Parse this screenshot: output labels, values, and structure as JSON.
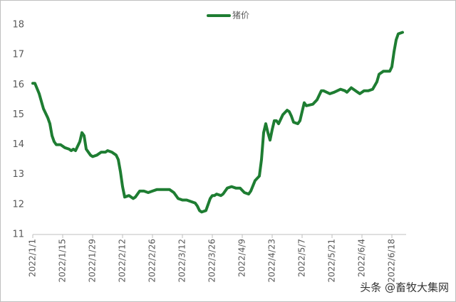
{
  "chart_data": {
    "type": "line",
    "x": [
      "2022/1/1",
      "2022/1/2",
      "2022/1/4",
      "2022/1/6",
      "2022/1/8",
      "2022/1/9",
      "2022/1/10",
      "2022/1/11",
      "2022/1/12",
      "2022/1/14",
      "2022/1/16",
      "2022/1/18",
      "2022/1/19",
      "2022/1/20",
      "2022/1/21",
      "2022/1/23",
      "2022/1/24",
      "2022/1/25",
      "2022/1/26",
      "2022/1/28",
      "2022/1/29",
      "2022/1/31",
      "2022/2/2",
      "2022/2/4",
      "2022/2/5",
      "2022/2/7",
      "2022/2/9",
      "2022/2/10",
      "2022/2/11",
      "2022/2/12",
      "2022/2/13",
      "2022/2/15",
      "2022/2/17",
      "2022/2/18",
      "2022/2/20",
      "2022/2/22",
      "2022/2/24",
      "2022/2/26",
      "2022/2/28",
      "2022/3/2",
      "2022/3/4",
      "2022/3/6",
      "2022/3/8",
      "2022/3/10",
      "2022/3/12",
      "2022/3/14",
      "2022/3/16",
      "2022/3/18",
      "2022/3/19",
      "2022/3/20",
      "2022/3/21",
      "2022/3/23",
      "2022/3/25",
      "2022/3/26",
      "2022/3/27",
      "2022/3/28",
      "2022/3/30",
      "2022/3/31",
      "2022/4/2",
      "2022/4/4",
      "2022/4/6",
      "2022/4/8",
      "2022/4/10",
      "2022/4/12",
      "2022/4/13",
      "2022/4/15",
      "2022/4/17",
      "2022/4/18",
      "2022/4/19",
      "2022/4/20",
      "2022/4/21",
      "2022/4/22",
      "2022/4/23",
      "2022/4/24",
      "2022/4/25",
      "2022/4/26",
      "2022/4/28",
      "2022/4/30",
      "2022/5/1",
      "2022/5/2",
      "2022/5/3",
      "2022/5/5",
      "2022/5/6",
      "2022/5/7",
      "2022/5/8",
      "2022/5/9",
      "2022/5/12",
      "2022/5/14",
      "2022/5/16",
      "2022/5/17",
      "2022/5/20",
      "2022/5/22",
      "2022/5/25",
      "2022/5/27",
      "2022/5/28",
      "2022/5/30",
      "2022/6/2",
      "2022/6/3",
      "2022/6/5",
      "2022/6/7",
      "2022/6/9",
      "2022/6/11",
      "2022/6/12",
      "2022/6/14",
      "2022/6/15",
      "2022/6/17",
      "2022/6/18",
      "2022/6/19",
      "2022/6/20",
      "2022/6/21",
      "2022/6/23"
    ],
    "series": [
      {
        "name": "猪价",
        "color": "#1e7d32",
        "values": [
          16.05,
          16.05,
          15.7,
          15.2,
          14.9,
          14.7,
          14.3,
          14.1,
          14.0,
          14.0,
          13.9,
          13.85,
          13.8,
          13.85,
          13.8,
          14.1,
          14.4,
          14.3,
          13.85,
          13.65,
          13.6,
          13.65,
          13.75,
          13.75,
          13.8,
          13.75,
          13.65,
          13.5,
          13.1,
          12.6,
          12.25,
          12.3,
          12.2,
          12.25,
          12.45,
          12.45,
          12.4,
          12.45,
          12.5,
          12.5,
          12.5,
          12.5,
          12.4,
          12.2,
          12.15,
          12.15,
          12.1,
          12.05,
          11.95,
          11.8,
          11.75,
          11.8,
          12.2,
          12.3,
          12.3,
          12.35,
          12.3,
          12.35,
          12.55,
          12.6,
          12.55,
          12.55,
          12.4,
          12.35,
          12.45,
          12.8,
          12.95,
          13.5,
          14.4,
          14.7,
          14.4,
          14.15,
          14.5,
          14.8,
          14.8,
          14.7,
          15.0,
          15.15,
          15.1,
          14.95,
          14.75,
          14.7,
          14.8,
          15.1,
          15.4,
          15.3,
          15.35,
          15.5,
          15.8,
          15.8,
          15.7,
          15.75,
          15.85,
          15.8,
          15.75,
          15.9,
          15.75,
          15.7,
          15.8,
          15.8,
          15.85,
          16.1,
          16.35,
          16.45,
          16.45,
          16.45,
          16.6,
          17.1,
          17.5,
          17.7,
          17.75
        ]
      }
    ],
    "xlim": [
      "2022/1/1",
      "2022/6/23"
    ],
    "xticks": [
      "2022/1/1",
      "2022/1/15",
      "2022/1/29",
      "2022/2/12",
      "2022/2/26",
      "2022/3/12",
      "2022/3/26",
      "2022/4/9",
      "2022/4/23",
      "2022/5/7",
      "2022/5/21",
      "2022/6/4",
      "2022/6/18"
    ],
    "ylim": [
      11,
      18
    ],
    "yticks": [
      11,
      12,
      13,
      14,
      15,
      16,
      17,
      18
    ],
    "grid": false,
    "legend": "top",
    "watermark": "头条 @畜牧大集网"
  }
}
